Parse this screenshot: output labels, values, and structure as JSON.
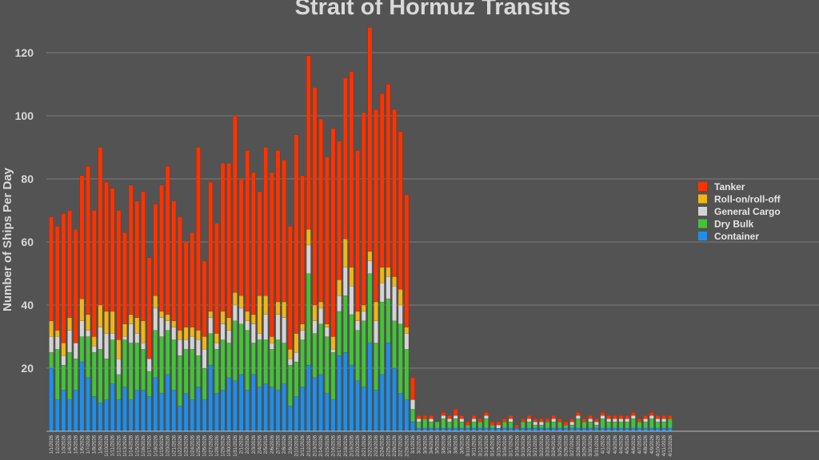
{
  "chart_data": {
    "type": "bar",
    "stacked": true,
    "title": "Strait of Hormuz Transits",
    "ylabel": "Number of Ships Per Day",
    "xlabel": "",
    "ylim": [
      0,
      130
    ],
    "yticks": [
      20,
      40,
      60,
      80,
      100,
      120
    ],
    "grid": true,
    "legend_position": "right",
    "categories": [
      "1/1/2026",
      "1/2/2026",
      "1/3/2026",
      "1/4/2026",
      "1/5/2026",
      "1/6/2026",
      "1/7/2026",
      "1/8/2026",
      "1/9/2026",
      "1/10/2026",
      "1/11/2026",
      "1/12/2026",
      "1/13/2026",
      "1/14/2026",
      "1/15/2026",
      "1/16/2026",
      "1/17/2026",
      "1/18/2026",
      "1/19/2026",
      "1/20/2026",
      "1/21/2026",
      "1/22/2026",
      "1/23/2026",
      "1/24/2026",
      "1/25/2026",
      "1/26/2026",
      "1/27/2026",
      "1/28/2026",
      "1/29/2026",
      "1/30/2026",
      "1/31/2026",
      "2/1/2026",
      "2/2/2026",
      "2/3/2026",
      "2/4/2026",
      "2/5/2026",
      "2/6/2026",
      "2/7/2026",
      "2/8/2026",
      "2/9/2026",
      "2/10/2026",
      "2/11/2026",
      "2/12/2026",
      "2/13/2026",
      "2/14/2026",
      "2/15/2026",
      "2/16/2026",
      "2/17/2026",
      "2/18/2026",
      "2/19/2026",
      "2/20/2026",
      "2/21/2026",
      "2/22/2026",
      "2/23/2026",
      "2/24/2026",
      "2/25/2026",
      "2/26/2026",
      "2/27/2026",
      "2/28/2026",
      "3/1/2026",
      "3/2/2026",
      "3/3/2026",
      "3/4/2026",
      "3/5/2026",
      "3/6/2026",
      "3/7/2026",
      "3/8/2026",
      "3/9/2026",
      "3/10/2026",
      "3/11/2026",
      "3/12/2026",
      "3/13/2026",
      "3/14/2026",
      "3/15/2026",
      "3/16/2026",
      "3/17/2026",
      "3/18/2026",
      "3/19/2026",
      "3/20/2026",
      "3/21/2026",
      "3/22/2026",
      "3/23/2026",
      "3/24/2026",
      "3/25/2026",
      "3/26/2026",
      "3/27/2026",
      "3/28/2026",
      "3/29/2026",
      "3/30/2026",
      "3/31/2026",
      "4/1/2026",
      "4/2/2026",
      "4/3/2026",
      "4/4/2026",
      "4/5/2026",
      "4/6/2026",
      "4/7/2026",
      "4/8/2026",
      "4/9/2026",
      "4/10/2026",
      "4/11/2026",
      "4/12/2026"
    ],
    "series": [
      {
        "name": "Container",
        "color": "#1f8fe8",
        "values": [
          20,
          10,
          13,
          10,
          13,
          22,
          17,
          11,
          9,
          10,
          15,
          10,
          14,
          10,
          13,
          13,
          11,
          17,
          12,
          18,
          13,
          8,
          12,
          10,
          14,
          10,
          21,
          12,
          13,
          17,
          16,
          18,
          13,
          18,
          14,
          15,
          14,
          13,
          15,
          8,
          11,
          14,
          21,
          17,
          18,
          12,
          10,
          24,
          25,
          21,
          16,
          14,
          28,
          13,
          18,
          28,
          20,
          12,
          10,
          3,
          1,
          1,
          1,
          1,
          1,
          1,
          1,
          1,
          1,
          1,
          1,
          1,
          1,
          1,
          1,
          1,
          1,
          1,
          1,
          1,
          1,
          1,
          1,
          1,
          1,
          1,
          1,
          1,
          1,
          1,
          1,
          1,
          1,
          1,
          1,
          1,
          1,
          1,
          1,
          1,
          1,
          1
        ]
      },
      {
        "name": "Dry Bulk",
        "color": "#45c23a",
        "values": [
          5,
          16,
          8,
          15,
          10,
          8,
          13,
          14,
          17,
          13,
          14,
          8,
          15,
          18,
          15,
          13,
          8,
          15,
          18,
          14,
          16,
          16,
          14,
          16,
          10,
          10,
          10,
          14,
          16,
          11,
          19,
          16,
          19,
          10,
          15,
          14,
          12,
          16,
          13,
          13,
          11,
          15,
          29,
          14,
          16,
          18,
          15,
          14,
          18,
          16,
          16,
          21,
          22,
          15,
          23,
          14,
          15,
          22,
          16,
          4,
          2,
          3,
          2,
          2,
          3,
          2,
          3,
          2,
          1,
          2,
          2,
          3,
          1,
          0,
          2,
          2,
          0,
          2,
          2,
          1,
          1,
          2,
          2,
          2,
          1,
          1,
          3,
          2,
          2,
          1,
          3,
          2,
          2,
          2,
          2,
          3,
          2,
          2,
          3,
          2,
          2,
          3
        ]
      },
      {
        "name": "General Cargo",
        "color": "#d4d4d4",
        "values": [
          5,
          4,
          3,
          7,
          5,
          5,
          2,
          2,
          7,
          8,
          2,
          5,
          1,
          6,
          3,
          2,
          4,
          7,
          6,
          3,
          4,
          5,
          3,
          4,
          5,
          6,
          5,
          2,
          5,
          4,
          5,
          5,
          3,
          6,
          2,
          8,
          2,
          8,
          8,
          2,
          3,
          3,
          9,
          4,
          5,
          3,
          1,
          5,
          9,
          9,
          3,
          3,
          4,
          7,
          6,
          7,
          11,
          6,
          5,
          3,
          1,
          0,
          1,
          0,
          1,
          1,
          1,
          1,
          0,
          1,
          0,
          1,
          0,
          1,
          0,
          1,
          0,
          0,
          1,
          1,
          1,
          0,
          1,
          0,
          0,
          1,
          1,
          0,
          1,
          1,
          1,
          1,
          1,
          1,
          1,
          1,
          0,
          1,
          1,
          1,
          1,
          0
        ]
      },
      {
        "name": "Roll-on/roll-off",
        "color": "#f2b614",
        "values": [
          5,
          2,
          4,
          4,
          0,
          7,
          5,
          3,
          7,
          7,
          7,
          6,
          4,
          3,
          5,
          7,
          0,
          4,
          2,
          2,
          2,
          3,
          4,
          3,
          3,
          4,
          2,
          3,
          4,
          4,
          4,
          4,
          3,
          3,
          12,
          6,
          2,
          4,
          5,
          3,
          6,
          2,
          5,
          5,
          2,
          1,
          4,
          5,
          9,
          6,
          3,
          2,
          3,
          6,
          5,
          3,
          3,
          5,
          2,
          0,
          0,
          0,
          0,
          0,
          0,
          0,
          0,
          0,
          0,
          0,
          0,
          0,
          0,
          0,
          0,
          0,
          0,
          0,
          0,
          0,
          0,
          0,
          0,
          0,
          0,
          0,
          0,
          0,
          0,
          0,
          0,
          0,
          0,
          0,
          0,
          0,
          0,
          0,
          0,
          0,
          0,
          0
        ]
      },
      {
        "name": "Tanker",
        "color": "#ff3300",
        "values": [
          33,
          33,
          41,
          34,
          36,
          39,
          47,
          40,
          50,
          41,
          39,
          41,
          29,
          41,
          37,
          41,
          32,
          29,
          40,
          47,
          38,
          36,
          27,
          30,
          58,
          24,
          41,
          35,
          47,
          49,
          56,
          37,
          51,
          45,
          33,
          47,
          52,
          48,
          45,
          39,
          63,
          47,
          55,
          69,
          58,
          53,
          66,
          44,
          51,
          62,
          51,
          61,
          71,
          61,
          55,
          58,
          53,
          50,
          42,
          7,
          1,
          1,
          1,
          0,
          1,
          1,
          2,
          1,
          1,
          1,
          1,
          1,
          1,
          1,
          1,
          1,
          1,
          1,
          1,
          1,
          1,
          1,
          1,
          1,
          1,
          1,
          1,
          1,
          1,
          1,
          1,
          1,
          1,
          1,
          1,
          1,
          1,
          1,
          1,
          1,
          1,
          1
        ]
      }
    ]
  },
  "legend": {
    "items": [
      {
        "label": "Tanker",
        "color": "#ff3300"
      },
      {
        "label": "Roll-on/roll-off",
        "color": "#f2b614"
      },
      {
        "label": "General Cargo",
        "color": "#d4d4d4"
      },
      {
        "label": "Dry Bulk",
        "color": "#45c23a"
      },
      {
        "label": "Container",
        "color": "#1f8fe8"
      }
    ]
  }
}
